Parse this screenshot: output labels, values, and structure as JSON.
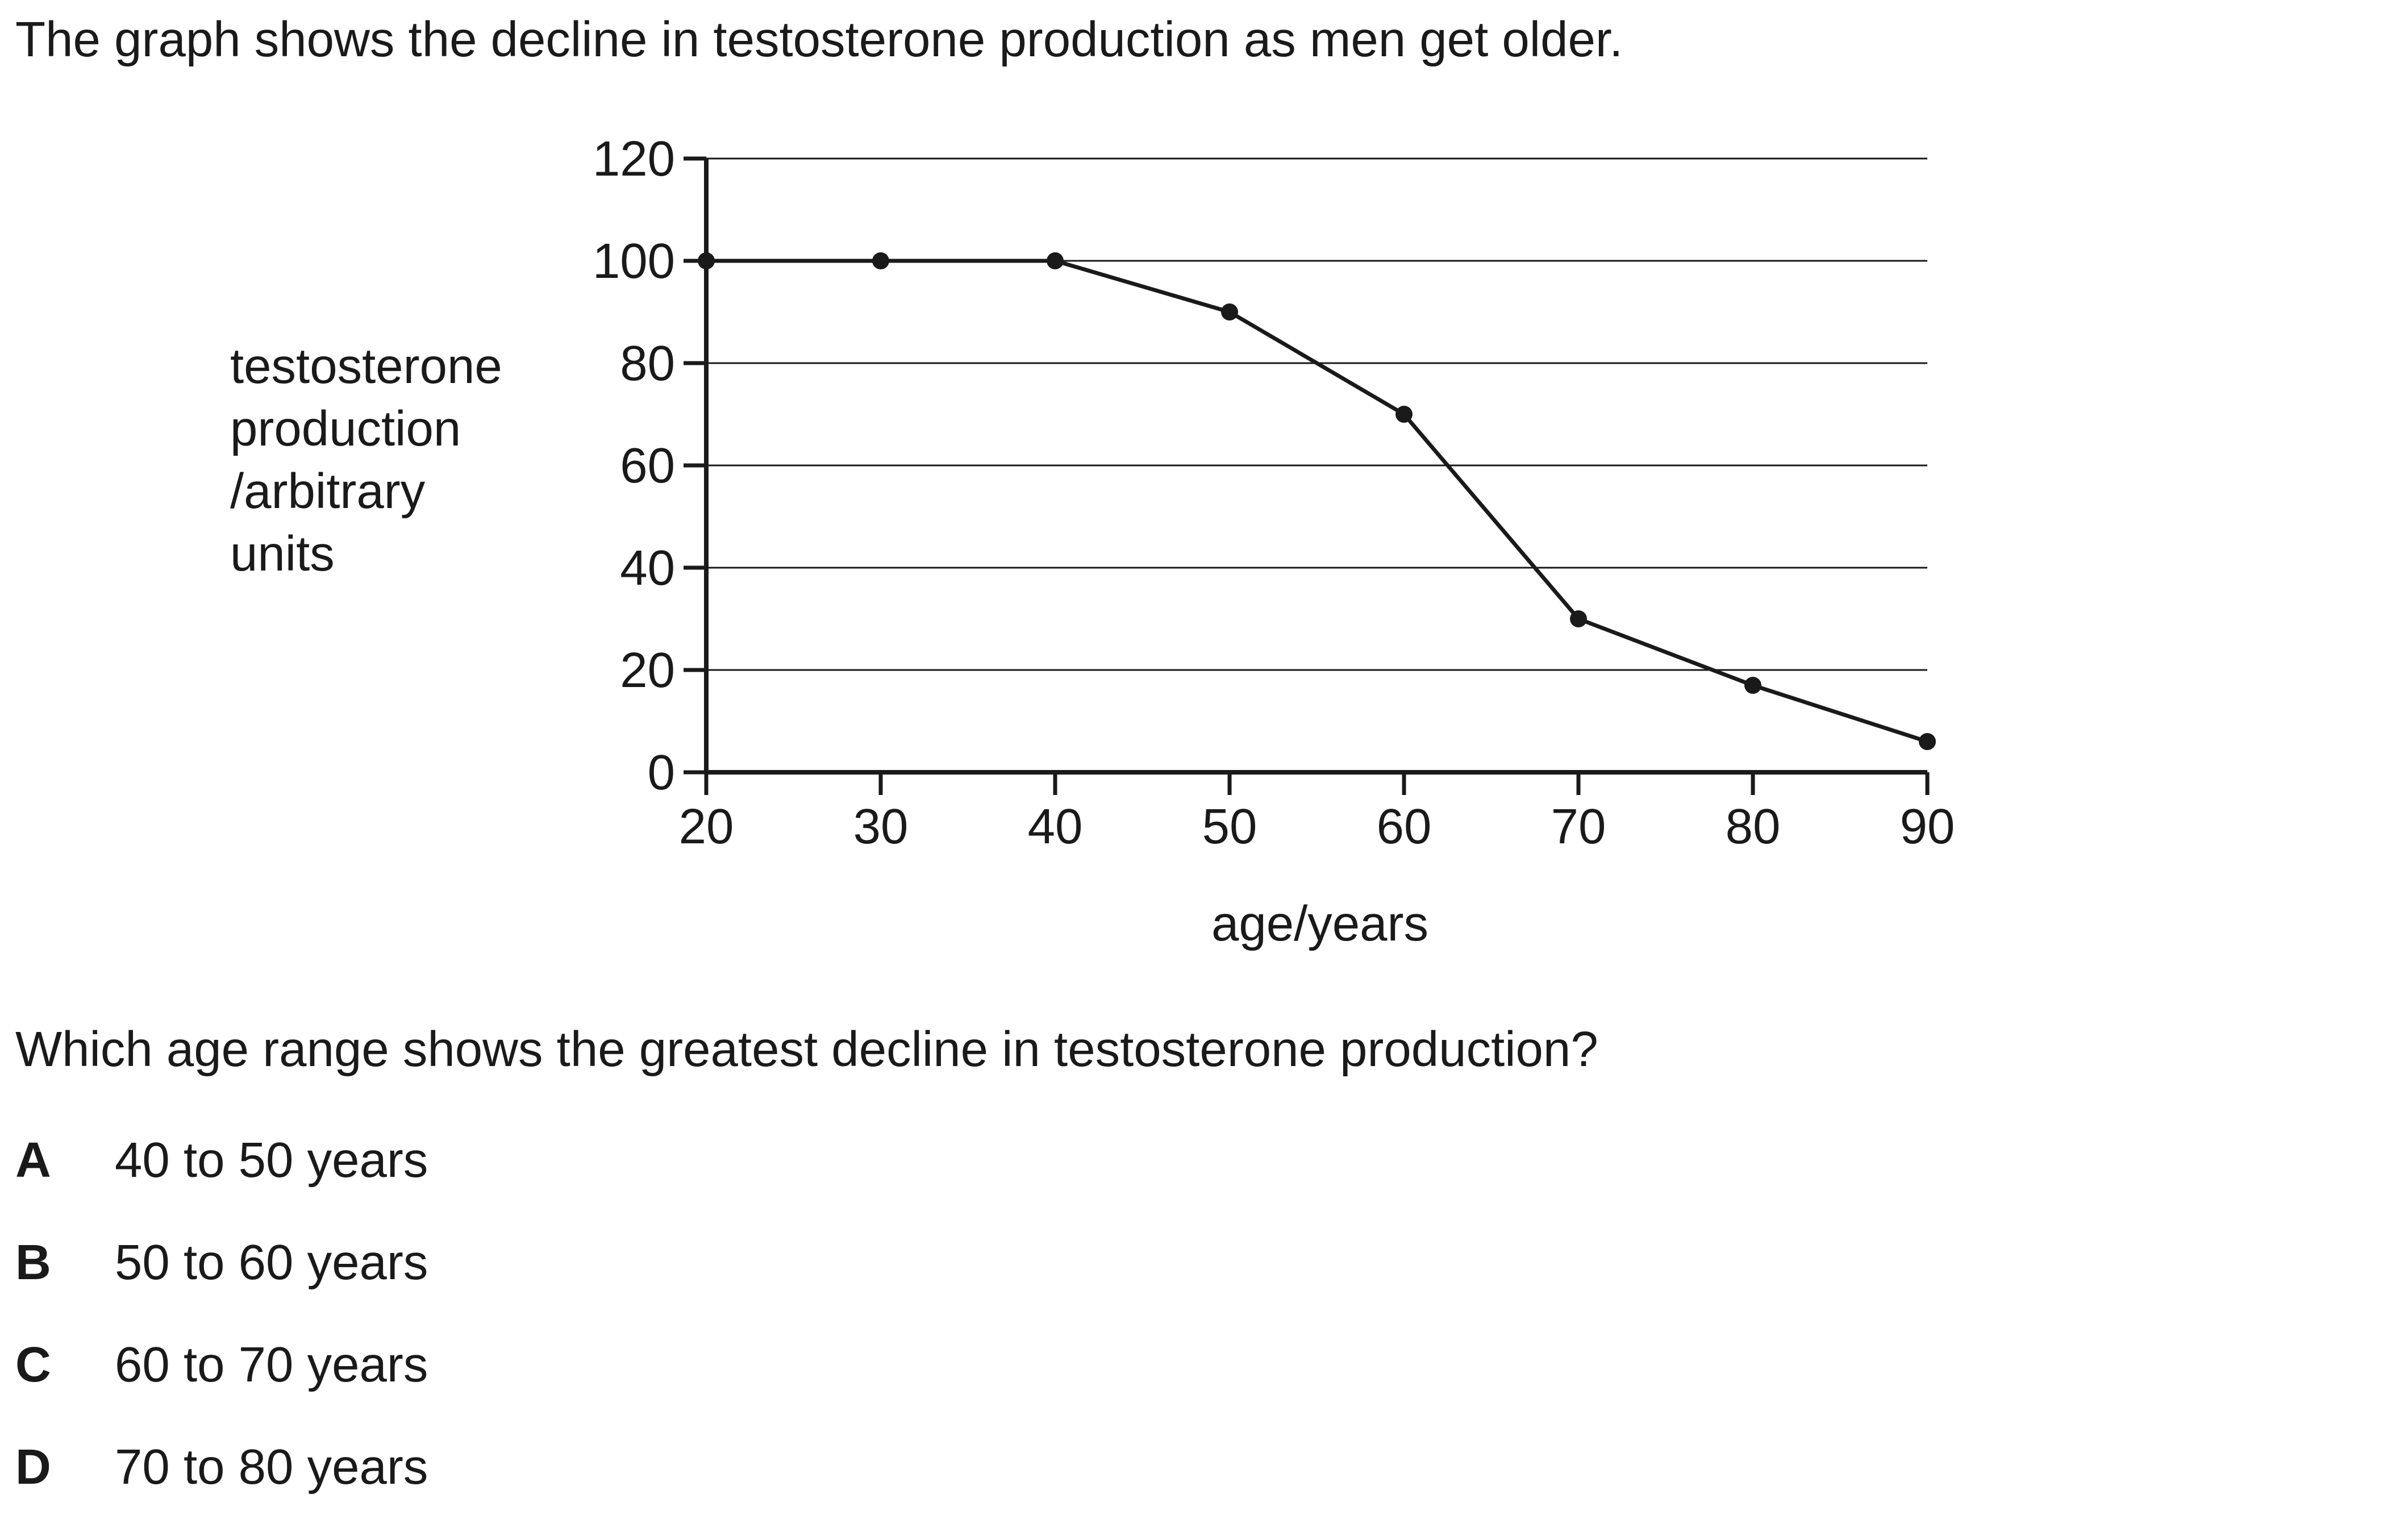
{
  "intro": "The graph shows the decline in testosterone production as men get older.",
  "chart_data": {
    "type": "line",
    "ylabel_lines": [
      "testosterone",
      "production",
      "/arbitrary",
      "units"
    ],
    "xlabel": "age/years",
    "xlim": [
      20,
      90
    ],
    "ylim": [
      0,
      120
    ],
    "x_ticks": [
      20,
      30,
      40,
      50,
      60,
      70,
      80,
      90
    ],
    "y_ticks": [
      0,
      20,
      40,
      60,
      80,
      100,
      120
    ],
    "grid": "horizontal",
    "series": [
      {
        "x": [
          20,
          30,
          40,
          50,
          60,
          70,
          80,
          90
        ],
        "y": [
          100,
          100,
          100,
          90,
          70,
          30,
          17,
          6
        ],
        "color": "#1a1a1a"
      }
    ]
  },
  "question": "Which age range shows the greatest decline in testosterone production?",
  "options": [
    {
      "letter": "A",
      "text": "40 to 50 years"
    },
    {
      "letter": "B",
      "text": "50 to 60 years"
    },
    {
      "letter": "C",
      "text": "60 to 70 years"
    },
    {
      "letter": "D",
      "text": "70 to 80 years"
    }
  ]
}
